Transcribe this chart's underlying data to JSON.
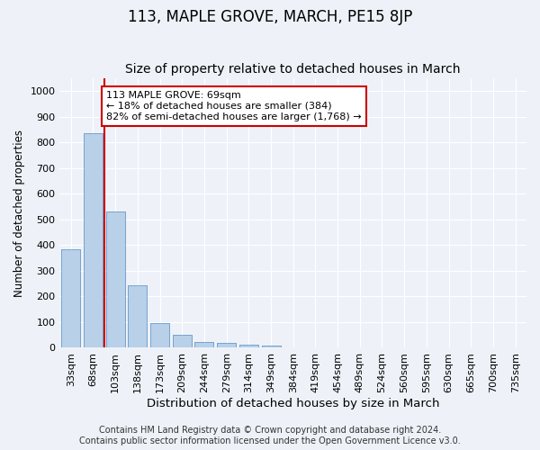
{
  "title": "113, MAPLE GROVE, MARCH, PE15 8JP",
  "subtitle": "Size of property relative to detached houses in March",
  "xlabel": "Distribution of detached houses by size in March",
  "ylabel": "Number of detached properties",
  "bar_labels": [
    "33sqm",
    "68sqm",
    "103sqm",
    "138sqm",
    "173sqm",
    "209sqm",
    "244sqm",
    "279sqm",
    "314sqm",
    "349sqm",
    "384sqm",
    "419sqm",
    "454sqm",
    "489sqm",
    "524sqm",
    "560sqm",
    "595sqm",
    "630sqm",
    "665sqm",
    "700sqm",
    "735sqm"
  ],
  "bar_values": [
    384,
    835,
    530,
    242,
    95,
    52,
    22,
    20,
    13,
    10,
    0,
    0,
    0,
    0,
    0,
    0,
    0,
    0,
    0,
    0,
    0
  ],
  "bar_color": "#b8d0e8",
  "bar_edge_color": "#6699cc",
  "ylim": [
    0,
    1050
  ],
  "yticks": [
    0,
    100,
    200,
    300,
    400,
    500,
    600,
    700,
    800,
    900,
    1000
  ],
  "property_line_x": 1.5,
  "property_line_color": "#cc0000",
  "annotation_text": "113 MAPLE GROVE: 69sqm\n← 18% of detached houses are smaller (384)\n82% of semi-detached houses are larger (1,768) →",
  "annotation_box_color": "#ffffff",
  "annotation_box_edge": "#cc0000",
  "footer_line1": "Contains HM Land Registry data © Crown copyright and database right 2024.",
  "footer_line2": "Contains public sector information licensed under the Open Government Licence v3.0.",
  "background_color": "#eef2f8",
  "plot_background": "#eef2f8",
  "grid_color": "#ffffff",
  "title_fontsize": 12,
  "subtitle_fontsize": 10,
  "xlabel_fontsize": 9.5,
  "ylabel_fontsize": 8.5,
  "tick_fontsize": 8,
  "annotation_fontsize": 8,
  "footer_fontsize": 7
}
